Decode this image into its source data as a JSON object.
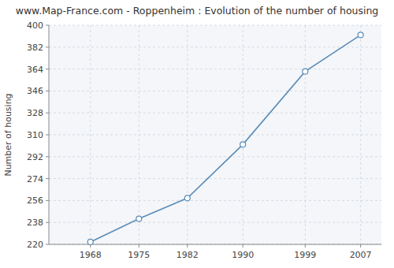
{
  "chart_data": {
    "type": "line",
    "title": "www.Map-France.com - Roppenheim : Evolution of the number of housing",
    "ylabel": "Number of housing",
    "x": [
      1968,
      1975,
      1982,
      1990,
      1999,
      2007
    ],
    "values": [
      222,
      241,
      258,
      302,
      362,
      392
    ],
    "xlim": [
      1962,
      2010
    ],
    "xticks": [
      1968,
      1975,
      1982,
      1990,
      1999,
      2007
    ],
    "ylim": [
      220,
      400
    ],
    "yticks": [
      220,
      238,
      256,
      274,
      292,
      310,
      328,
      346,
      364,
      382,
      400
    ],
    "grid": true,
    "color": "#5b8db8",
    "marker": "circle"
  }
}
